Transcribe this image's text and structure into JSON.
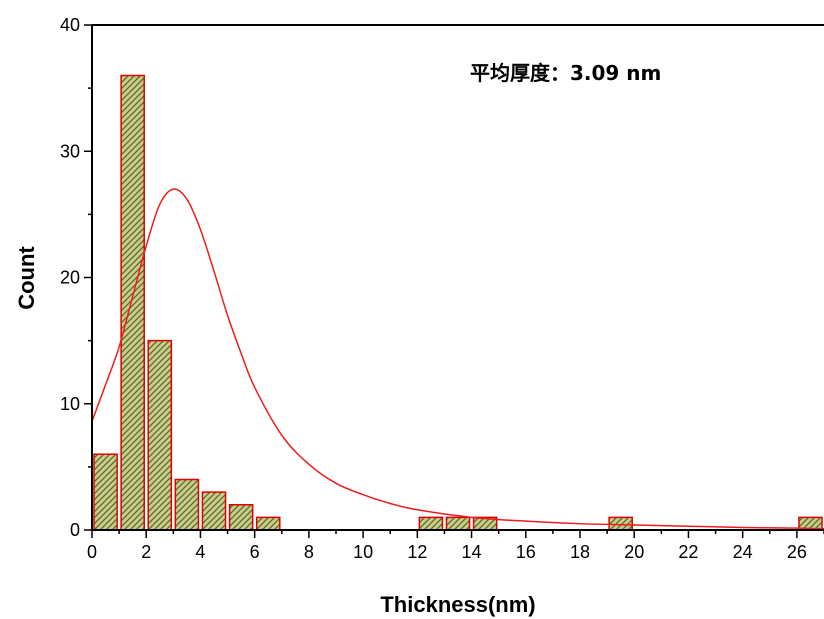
{
  "chart_data": {
    "type": "bar",
    "xlabel": "Thickness(nm)",
    "ylabel": "Count",
    "annotation": "平均厚度：3.09 nm",
    "xlim": [
      0,
      27
    ],
    "ylim": [
      0,
      40
    ],
    "x_ticks": [
      "0",
      "2",
      "4",
      "6",
      "8",
      "10",
      "12",
      "14",
      "16",
      "18",
      "20",
      "22",
      "24",
      "26"
    ],
    "y_ticks": [
      "0",
      "10",
      "20",
      "30",
      "40"
    ],
    "bars": [
      {
        "x_start": 0,
        "x_end": 1,
        "count": 6
      },
      {
        "x_start": 1,
        "x_end": 2,
        "count": 36
      },
      {
        "x_start": 2,
        "x_end": 3,
        "count": 15
      },
      {
        "x_start": 3,
        "x_end": 4,
        "count": 4
      },
      {
        "x_start": 4,
        "x_end": 5,
        "count": 3
      },
      {
        "x_start": 5,
        "x_end": 6,
        "count": 2
      },
      {
        "x_start": 6,
        "x_end": 7,
        "count": 1
      },
      {
        "x_start": 12,
        "x_end": 13,
        "count": 1
      },
      {
        "x_start": 13,
        "x_end": 14,
        "count": 1
      },
      {
        "x_start": 14,
        "x_end": 15,
        "count": 1
      },
      {
        "x_start": 19,
        "x_end": 20,
        "count": 1
      },
      {
        "x_start": 26,
        "x_end": 27,
        "count": 1
      }
    ],
    "fit_curve": {
      "type": "lognormal",
      "peak_x": 3.1,
      "peak_y": 27,
      "points": [
        [
          0,
          8.6
        ],
        [
          0.5,
          11.5
        ],
        [
          1,
          14.5
        ],
        [
          1.5,
          18.5
        ],
        [
          2,
          22.5
        ],
        [
          2.5,
          25.8
        ],
        [
          3,
          27
        ],
        [
          3.5,
          26.2
        ],
        [
          4,
          23.8
        ],
        [
          4.5,
          20.5
        ],
        [
          5,
          17
        ],
        [
          5.5,
          14
        ],
        [
          6,
          11.3
        ],
        [
          7,
          7.5
        ],
        [
          8,
          5.2
        ],
        [
          9,
          3.7
        ],
        [
          10,
          2.8
        ],
        [
          11,
          2.1
        ],
        [
          12,
          1.6
        ],
        [
          14,
          1.0
        ],
        [
          16,
          0.7
        ],
        [
          18,
          0.5
        ],
        [
          20,
          0.4
        ],
        [
          22,
          0.3
        ],
        [
          24,
          0.2
        ],
        [
          26,
          0.15
        ],
        [
          27,
          0.1
        ]
      ]
    },
    "colors": {
      "bar_edge": "#e00000",
      "bar_fill": "#c8cc90",
      "hatch": "#5a6a1e",
      "curve": "#ee1c1c",
      "axis": "#000000"
    },
    "grid": false
  }
}
